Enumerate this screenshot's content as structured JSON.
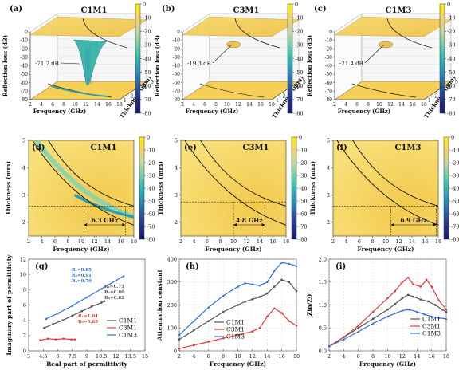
{
  "panels3d": [
    {
      "letter": "(a)",
      "title": "C1M1",
      "minLabel": "-71.7 dB",
      "depth": 0.92
    },
    {
      "letter": "(b)",
      "title": "C3M1",
      "minLabel": "-19.3 dB",
      "depth": 0.26
    },
    {
      "letter": "(c)",
      "title": "C1M3",
      "minLabel": "-21.4 dB",
      "depth": 0.3
    }
  ],
  "axes3d": {
    "zlabel": "Reflection loss (dB)",
    "xlabel": "Frequency (GHz)",
    "ylabel": "Thickness (mm)",
    "zticks": [
      "0",
      "-10",
      "-20",
      "-30",
      "-40",
      "-50",
      "-60",
      "-70",
      "-80"
    ],
    "xticks": [
      "2",
      "4",
      "6",
      "8",
      "10",
      "12",
      "14",
      "16",
      "18"
    ],
    "yticks": [
      "1",
      "2",
      "3",
      "4",
      "5"
    ]
  },
  "colorbar": {
    "ticks": [
      "0",
      "-10",
      "-20",
      "-30",
      "-40",
      "-50",
      "-60",
      "-70",
      "-80"
    ],
    "stops": [
      "#ffef00",
      "#f2d36a",
      "#c7d79e",
      "#6fd0a8",
      "#2db8b0",
      "#2a8fb8",
      "#2a5aa0",
      "#24308a",
      "#1a1a6a"
    ]
  },
  "panels2d": [
    {
      "letter": "(d)",
      "title": "C1M1",
      "band": "6.3 GHz",
      "f1": 10.4,
      "f2": 16.7,
      "t": 2.6
    },
    {
      "letter": "(e)",
      "title": "C3M1",
      "band": "4.8 GHz",
      "f1": 10.0,
      "f2": 14.8,
      "t": 2.75
    },
    {
      "letter": "(f)",
      "title": "C1M3",
      "band": "6.9 GHz",
      "f1": 10.8,
      "f2": 17.7,
      "t": 2.6
    }
  ],
  "axes2d": {
    "xlabel": "Frequency (GHz)",
    "ylabel": "Thickness (mm)",
    "xticks": [
      2,
      4,
      6,
      8,
      10,
      12,
      14,
      16,
      18
    ],
    "yticks": [
      2,
      3,
      4,
      5
    ]
  },
  "chart_data": [
    {
      "type": "line",
      "panel": "(g)",
      "xlabel": "Real part of permittivity",
      "ylabel": "Imaginary part of permittivity",
      "xlim": [
        3,
        15
      ],
      "ylim": [
        0,
        12
      ],
      "xticks": [
        3,
        4.5,
        6,
        7.5,
        9,
        10.5,
        12,
        13.5,
        15
      ],
      "yticks": [
        0,
        2,
        4,
        6,
        8,
        10,
        12
      ],
      "legend": [
        "C1M1",
        "C3M1",
        "C1M3"
      ],
      "legend_position": "right",
      "annotations": [
        {
          "lines": [
            "R₁=0.85",
            "R₂=0.91",
            "R₃=0.79"
          ],
          "color": "#2f6fe0"
        },
        {
          "lines": [
            "R₁=0.73",
            "R₂=0.80",
            "R₃=0.82"
          ],
          "color": "#555555"
        },
        {
          "lines": [
            "R₁=1.04",
            "R₂=0.85"
          ],
          "color": "#e23b3b"
        }
      ],
      "series": [
        {
          "name": "C1M1",
          "color": "#555555",
          "x": [
            4.6,
            5.5,
            6.5,
            7.5,
            8.5,
            9.5,
            10.5,
            10.8
          ],
          "y": [
            3.0,
            3.5,
            4.0,
            4.6,
            5.2,
            5.8,
            6.3,
            6.5
          ]
        },
        {
          "name": "C3M1",
          "color": "#e23b3b",
          "x": [
            4.2,
            5.0,
            5.8,
            6.6,
            7.4,
            7.8
          ],
          "y": [
            1.4,
            1.6,
            1.5,
            1.6,
            1.5,
            1.5
          ]
        },
        {
          "name": "C1M3",
          "color": "#2f6fe0",
          "x": [
            4.8,
            6.0,
            7.5,
            9.0,
            10.5,
            12.0,
            12.8
          ],
          "y": [
            4.2,
            4.9,
            5.9,
            7.0,
            8.1,
            9.2,
            9.8
          ]
        }
      ]
    },
    {
      "type": "line",
      "panel": "(h)",
      "xlabel": "Frequency (GHz)",
      "ylabel": "Attenuation constant",
      "xlim": [
        2,
        18
      ],
      "ylim": [
        0,
        400
      ],
      "xticks": [
        2,
        4,
        6,
        8,
        10,
        12,
        14,
        16,
        18
      ],
      "yticks": [
        0,
        100,
        200,
        300,
        400
      ],
      "legend": [
        "C1M1",
        "C3M1",
        "C1M3"
      ],
      "legend_position": "bottom-left",
      "series": [
        {
          "name": "C1M1",
          "color": "#555555",
          "x": [
            2,
            4,
            6,
            8,
            10,
            11,
            12,
            13,
            14,
            15,
            16,
            17,
            18
          ],
          "y": [
            50,
            90,
            130,
            170,
            200,
            215,
            225,
            235,
            250,
            280,
            310,
            300,
            260
          ]
        },
        {
          "name": "C3M1",
          "color": "#e23b3b",
          "x": [
            2,
            4,
            6,
            8,
            10,
            12,
            13,
            14,
            15,
            16,
            17,
            18
          ],
          "y": [
            10,
            25,
            40,
            55,
            70,
            85,
            100,
            150,
            185,
            165,
            130,
            110
          ]
        },
        {
          "name": "C1M3",
          "color": "#2f6fe0",
          "x": [
            2,
            4,
            6,
            8,
            10,
            11,
            12,
            13,
            14,
            15,
            16,
            17,
            18
          ],
          "y": [
            70,
            130,
            190,
            240,
            280,
            295,
            290,
            285,
            300,
            350,
            385,
            380,
            370
          ]
        }
      ]
    },
    {
      "type": "line",
      "panel": "(i)",
      "xlabel": "Frequency (GHz)",
      "ylabel": "|Zin/Z0|",
      "xlim": [
        2,
        18
      ],
      "ylim": [
        0,
        2.0
      ],
      "xticks": [
        2,
        4,
        6,
        8,
        10,
        12,
        14,
        16,
        18
      ],
      "yticks": [
        0.0,
        0.5,
        1.0,
        1.5,
        2.0
      ],
      "legend": [
        "C1M1",
        "C3M1",
        "C1M3"
      ],
      "legend_position": "right",
      "series": [
        {
          "name": "C1M1",
          "color": "#555555",
          "x": [
            2,
            4,
            6,
            8,
            10,
            11,
            12,
            12.8,
            13.5,
            14.5,
            15.5,
            16.5,
            17.5,
            18
          ],
          "y": [
            0.1,
            0.3,
            0.5,
            0.7,
            0.9,
            1.02,
            1.15,
            1.22,
            1.18,
            1.12,
            1.08,
            1.0,
            0.9,
            0.85
          ]
        },
        {
          "name": "C3M1",
          "color": "#e23b3b",
          "x": [
            2,
            4,
            6,
            8,
            10,
            11,
            12,
            12.8,
            13.5,
            14.5,
            15.3,
            16,
            17,
            18
          ],
          "y": [
            0.1,
            0.3,
            0.55,
            0.85,
            1.15,
            1.3,
            1.5,
            1.6,
            1.45,
            1.4,
            1.55,
            1.4,
            1.1,
            0.9
          ]
        },
        {
          "name": "C1M3",
          "color": "#2f6fe0",
          "x": [
            2,
            4,
            6,
            8,
            10,
            11,
            12,
            13,
            14,
            15,
            16,
            17,
            18
          ],
          "y": [
            0.1,
            0.25,
            0.42,
            0.6,
            0.75,
            0.82,
            0.88,
            0.9,
            0.85,
            0.8,
            0.75,
            0.72,
            0.7
          ]
        }
      ]
    }
  ]
}
